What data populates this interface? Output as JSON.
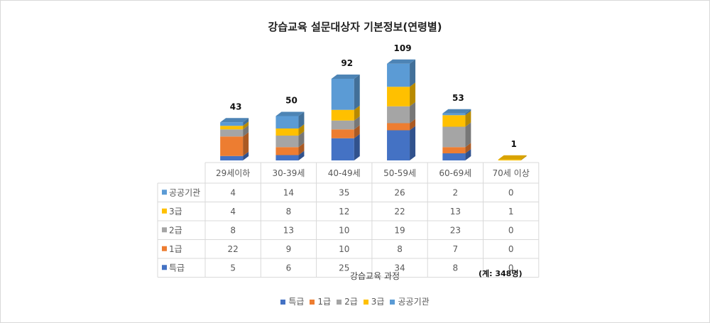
{
  "chart_data": {
    "type": "bar",
    "stacked": true,
    "title": "강습교육 설문대상자 기본정보(연령별)",
    "xlabel": "강습교육 과정",
    "note": "(계: 348명)",
    "categories": [
      "29세이하",
      "30-39세",
      "40-49세",
      "50-59세",
      "60-69세",
      "70세 이상"
    ],
    "series": [
      {
        "name": "특급",
        "color": "#4472c4",
        "values": [
          5,
          6,
          25,
          34,
          8,
          0
        ]
      },
      {
        "name": "1급",
        "color": "#ed7d31",
        "values": [
          22,
          9,
          10,
          8,
          7,
          0
        ]
      },
      {
        "name": "2급",
        "color": "#a5a5a5",
        "values": [
          8,
          13,
          10,
          19,
          23,
          0
        ]
      },
      {
        "name": "3급",
        "color": "#ffc000",
        "values": [
          4,
          8,
          12,
          22,
          13,
          1
        ]
      },
      {
        "name": "공공기관",
        "color": "#5b9bd5",
        "values": [
          4,
          14,
          35,
          26,
          2,
          0
        ]
      }
    ],
    "totals": [
      43,
      50,
      92,
      109,
      53,
      1
    ],
    "legend_position": "bottom",
    "data_table": true,
    "grid": false
  }
}
